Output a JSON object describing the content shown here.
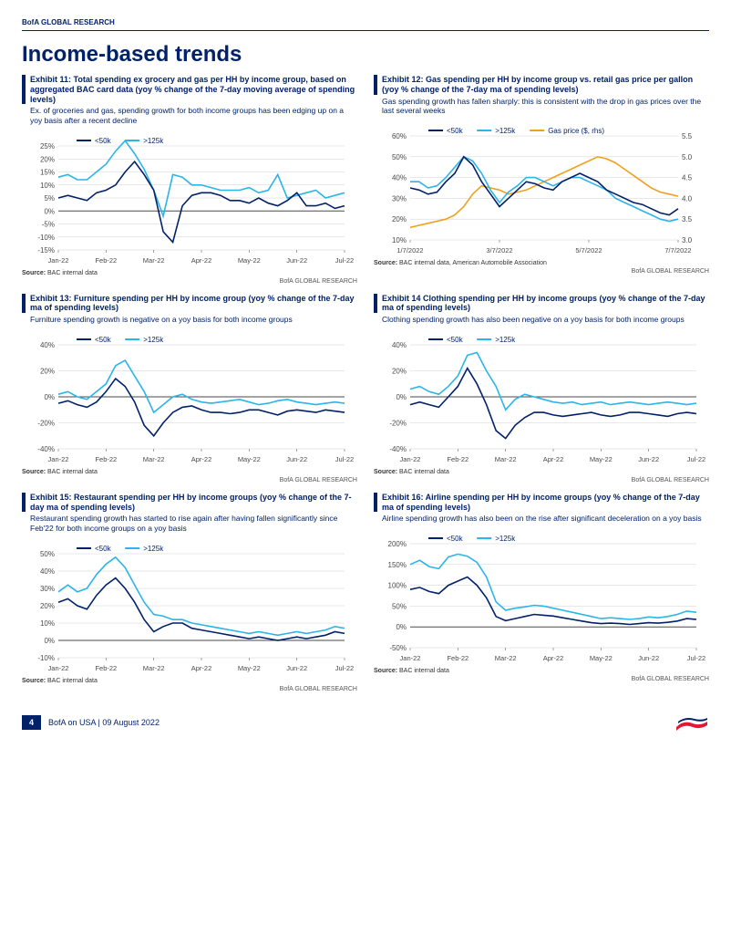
{
  "header_small": "BofA GLOBAL RESEARCH",
  "section_title": "Income-based trends",
  "legend_labels": {
    "lt50k": "<50k",
    "gt125k": ">125k",
    "gas": "Gas price ($, rhs)"
  },
  "colors": {
    "navy": "#012169",
    "cyan": "#2bb5e8",
    "orange": "#f0a020",
    "grid": "#d0d0d0",
    "axis": "#4a4a4a",
    "text": "#012169"
  },
  "months": [
    "Jan-22",
    "Feb-22",
    "Mar-22",
    "Apr-22",
    "May-22",
    "Jun-22",
    "Jul-22"
  ],
  "months_short": [
    "1/7/2022",
    "3/7/2022",
    "5/7/2022",
    "7/7/2022"
  ],
  "source_default": "BAC internal data",
  "source_gas": "BAC internal data, American Automobile Association",
  "attrib": "BofA GLOBAL RESEARCH",
  "footer": {
    "page": "4",
    "text": "BofA on USA | 09 August 2022"
  },
  "charts": {
    "e11": {
      "title": "Exhibit 11: Total spending ex grocery and gas per HH by income group, based on aggregated BAC card data (yoy % change of the 7-day moving average of spending levels)",
      "sub": "Ex. of groceries and gas, spending growth for both income groups has been edging up on a yoy basis after a recent decline",
      "ytick_step": 5,
      "ylim": [
        -15,
        25
      ],
      "navy": [
        5,
        6,
        5,
        4,
        7,
        8,
        10,
        15,
        19,
        14,
        8,
        -8,
        -12,
        2,
        6,
        7,
        7,
        6,
        4,
        4,
        3,
        5,
        3,
        2,
        4,
        7,
        2,
        2,
        3,
        1,
        2
      ],
      "cyan": [
        13,
        14,
        12,
        12,
        15,
        18,
        23,
        27,
        22,
        16,
        8,
        -2,
        14,
        13,
        10,
        10,
        9,
        8,
        8,
        8,
        9,
        7,
        8,
        14,
        5,
        6,
        7,
        8,
        5,
        6,
        7
      ]
    },
    "e12": {
      "title": "Exhibit 12: Gas spending per HH by income group vs. retail gas price per gallon (yoy % change of the 7-day ma of spending levels)",
      "sub": "Gas spending growth has fallen sharply: this is consistent with the drop in gas prices over the last several weeks",
      "ylim_l": [
        10,
        60
      ],
      "ytick_l": 10,
      "ylim_r": [
        3.0,
        5.5
      ],
      "ytick_r": 0.5,
      "navy": [
        35,
        34,
        32,
        33,
        38,
        42,
        50,
        46,
        38,
        32,
        26,
        30,
        34,
        38,
        37,
        35,
        34,
        38,
        40,
        42,
        40,
        38,
        34,
        32,
        30,
        28,
        27,
        25,
        23,
        22,
        25
      ],
      "cyan": [
        38,
        38,
        35,
        36,
        40,
        45,
        50,
        48,
        42,
        34,
        28,
        33,
        36,
        40,
        40,
        38,
        36,
        38,
        40,
        40,
        38,
        36,
        34,
        30,
        28,
        26,
        24,
        22,
        20,
        19,
        20
      ],
      "orange": [
        3.3,
        3.35,
        3.4,
        3.45,
        3.5,
        3.6,
        3.8,
        4.1,
        4.3,
        4.25,
        4.2,
        4.1,
        4.15,
        4.2,
        4.3,
        4.4,
        4.5,
        4.6,
        4.7,
        4.8,
        4.9,
        5.0,
        4.95,
        4.85,
        4.7,
        4.55,
        4.4,
        4.25,
        4.15,
        4.1,
        4.05
      ]
    },
    "e13": {
      "title": "Exhibit 13: Furniture spending per HH by income group (yoy % change of the 7-day ma of spending levels)",
      "sub": "Furniture spending growth is negative on a yoy basis for both income groups",
      "ytick_step": 20,
      "ylim": [
        -40,
        40
      ],
      "navy": [
        -5,
        -3,
        -6,
        -8,
        -4,
        4,
        14,
        8,
        -4,
        -22,
        -30,
        -20,
        -12,
        -8,
        -7,
        -10,
        -12,
        -12,
        -13,
        -12,
        -10,
        -10,
        -12,
        -14,
        -11,
        -10,
        -11,
        -12,
        -10,
        -11,
        -12
      ],
      "cyan": [
        2,
        4,
        0,
        -2,
        4,
        10,
        24,
        28,
        16,
        4,
        -12,
        -6,
        0,
        2,
        -2,
        -4,
        -5,
        -4,
        -3,
        -2,
        -4,
        -6,
        -5,
        -3,
        -2,
        -4,
        -5,
        -6,
        -5,
        -4,
        -5
      ]
    },
    "e14": {
      "title": "Exhibit 14 Clothing spending per HH by income groups (yoy % change of the 7-day ma of spending levels)",
      "sub": "Clothing spending growth has also been negative on a yoy basis for both income groups",
      "ytick_step": 20,
      "ylim": [
        -40,
        40
      ],
      "navy": [
        -6,
        -4,
        -6,
        -8,
        0,
        8,
        22,
        10,
        -6,
        -26,
        -32,
        -22,
        -16,
        -12,
        -12,
        -14,
        -15,
        -14,
        -13,
        -12,
        -14,
        -15,
        -14,
        -12,
        -12,
        -13,
        -14,
        -15,
        -13,
        -12,
        -13
      ],
      "cyan": [
        6,
        8,
        4,
        2,
        8,
        16,
        32,
        34,
        20,
        8,
        -10,
        -2,
        2,
        0,
        -2,
        -4,
        -5,
        -4,
        -6,
        -5,
        -4,
        -6,
        -5,
        -4,
        -5,
        -6,
        -5,
        -4,
        -5,
        -6,
        -5
      ]
    },
    "e15": {
      "title": "Exhibit 15: Restaurant spending per HH by income groups (yoy % change of the 7-day ma of spending levels)",
      "sub": "Restaurant spending growth has started to rise again after having fallen significantly since Feb'22 for both income groups on a yoy basis",
      "ytick_step": 10,
      "ylim": [
        -10,
        50
      ],
      "navy": [
        22,
        24,
        20,
        18,
        26,
        32,
        36,
        30,
        22,
        12,
        5,
        8,
        10,
        10,
        7,
        6,
        5,
        4,
        3,
        2,
        1,
        2,
        1,
        0,
        1,
        2,
        1,
        2,
        3,
        5,
        4
      ],
      "cyan": [
        28,
        32,
        28,
        30,
        38,
        44,
        48,
        42,
        32,
        22,
        15,
        14,
        12,
        12,
        10,
        9,
        8,
        7,
        6,
        5,
        4,
        5,
        4,
        3,
        4,
        5,
        4,
        5,
        6,
        8,
        7
      ]
    },
    "e16": {
      "title": "Exhibit 16: Airline spending per HH by income groups (yoy % change of the 7-day ma of spending levels)",
      "sub": "Airline spending growth has also been on the rise after significant deceleration on a yoy basis",
      "ytick_step": 50,
      "ylim": [
        -50,
        200
      ],
      "navy": [
        90,
        95,
        85,
        80,
        100,
        110,
        120,
        100,
        70,
        25,
        15,
        20,
        25,
        30,
        28,
        26,
        22,
        18,
        14,
        10,
        8,
        9,
        8,
        6,
        8,
        10,
        9,
        11,
        14,
        20,
        18
      ],
      "cyan": [
        150,
        160,
        145,
        140,
        168,
        175,
        170,
        155,
        120,
        60,
        40,
        45,
        48,
        52,
        50,
        45,
        40,
        35,
        30,
        25,
        20,
        22,
        20,
        18,
        20,
        24,
        22,
        25,
        30,
        38,
        35
      ]
    }
  }
}
